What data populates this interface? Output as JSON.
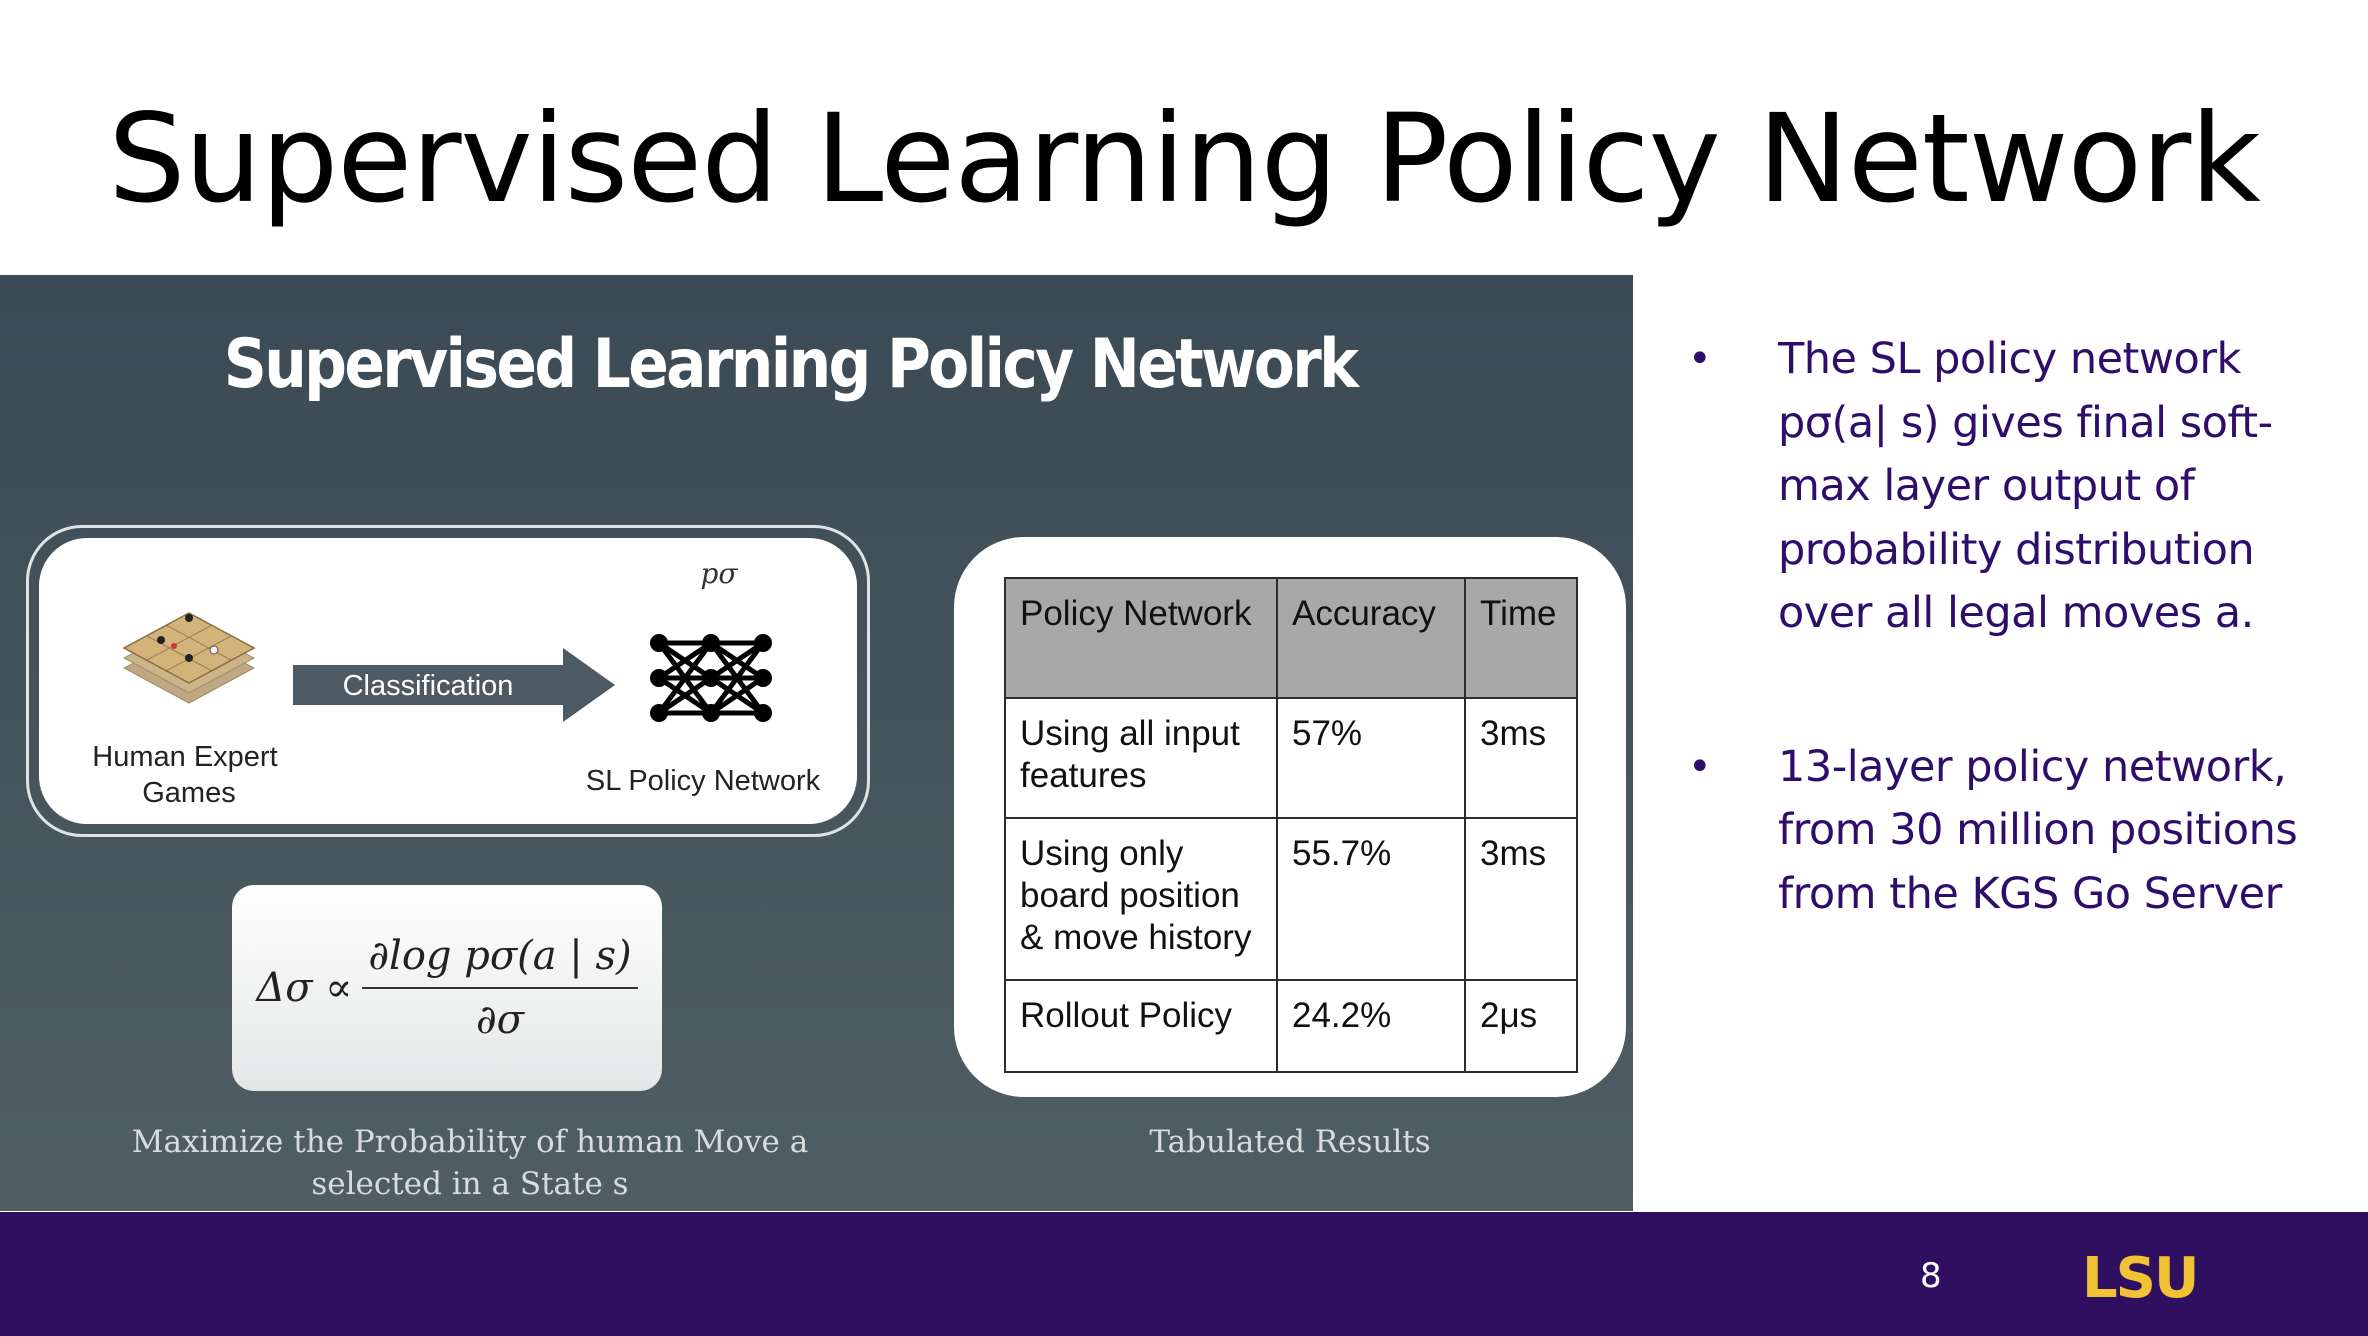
{
  "slide": {
    "title": "Supervised Learning Policy Network",
    "page_number": "8",
    "logo_text": "LSU",
    "colors": {
      "footer": "#2f0f60",
      "bullet_text": "#2e0d6b",
      "logo_gold": "#f1c233"
    }
  },
  "embedded_slide": {
    "title": "Supervised Learning Policy Network",
    "diagram": {
      "input_label": "Human Expert\nGames",
      "arrow_label": "Classification",
      "output_label": "SL Policy Network",
      "symbol": "pσ"
    },
    "formula": {
      "lhs": "Δσ ∝",
      "numerator": "∂log pσ(a | s)",
      "denominator": "∂σ"
    },
    "left_caption": "Maximize the Probability of human Move a\nselected in a State s",
    "right_caption": "Tabulated Results",
    "table": {
      "headers": [
        "Policy Network",
        "Accuracy",
        "Time"
      ],
      "rows": [
        [
          "Using all input features",
          "57%",
          "3ms"
        ],
        [
          "Using only board position & move history",
          "55.7%",
          "3ms"
        ],
        [
          "Rollout Policy",
          "24.2%",
          "2μs"
        ]
      ]
    }
  },
  "bullets": [
    "The SL policy network pσ(a| s) gives final soft-max layer output of probability distribution over all legal moves a.",
    "13-layer policy network, from 30 million positions from the KGS Go Server"
  ],
  "bullet_symbol": "•"
}
